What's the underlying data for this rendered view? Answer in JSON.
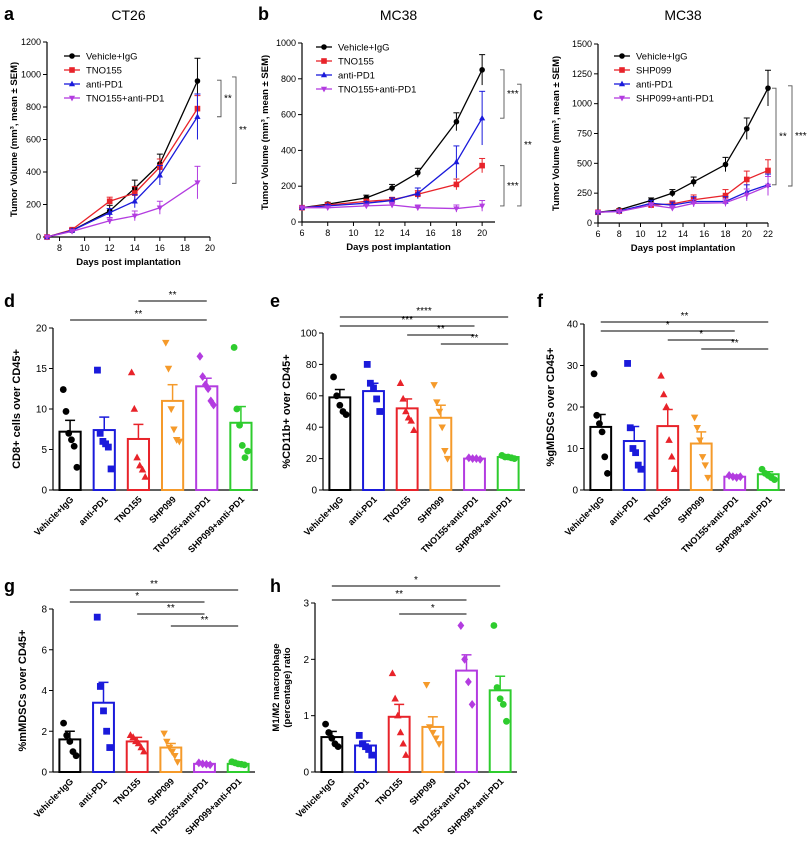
{
  "colors": {
    "black": "#000000",
    "red": "#e8232a",
    "blue": "#1a1adb",
    "violet": "#b33ce0",
    "orange": "#f59a2a",
    "green": "#2ecc2e"
  },
  "chart_data": [
    {
      "panel": "a",
      "type": "line",
      "title": "CT26",
      "xlabel": "Days post implantation",
      "ylabel": "Tumor Volume (mm³, mean ± SEM)",
      "xlim": [
        7,
        20
      ],
      "ylim": [
        0,
        1200
      ],
      "xticks": [
        8,
        10,
        12,
        14,
        16,
        18,
        20
      ],
      "yticks": [
        0,
        200,
        400,
        600,
        800,
        1000,
        1200
      ],
      "legend_position": "top-left",
      "series": [
        {
          "name": "Vehicle+IgG",
          "color": "black",
          "marker": "circle",
          "x": [
            7,
            9,
            12,
            14,
            16,
            19
          ],
          "y": [
            0,
            40,
            160,
            300,
            450,
            960
          ],
          "err": [
            0,
            8,
            35,
            50,
            60,
            140
          ]
        },
        {
          "name": "TNO155",
          "color": "red",
          "marker": "square",
          "x": [
            7,
            9,
            12,
            14,
            16,
            19
          ],
          "y": [
            0,
            45,
            220,
            270,
            430,
            790
          ],
          "err": [
            0,
            8,
            25,
            40,
            50,
            80
          ]
        },
        {
          "name": "anti-PD1",
          "color": "blue",
          "marker": "triangle",
          "x": [
            7,
            9,
            12,
            14,
            16,
            19
          ],
          "y": [
            0,
            40,
            150,
            220,
            380,
            740
          ],
          "err": [
            0,
            8,
            25,
            40,
            60,
            140
          ]
        },
        {
          "name": "TNO155+anti-PD1",
          "color": "violet",
          "marker": "triangle-down",
          "x": [
            7,
            9,
            12,
            14,
            16,
            19
          ],
          "y": [
            0,
            35,
            100,
            130,
            180,
            335
          ],
          "err": [
            0,
            8,
            20,
            30,
            40,
            100
          ]
        }
      ],
      "annotations": [
        "**",
        "**"
      ]
    },
    {
      "panel": "b",
      "type": "line",
      "title": "MC38",
      "xlabel": "Days post implantation",
      "ylabel": "Tumor Volume (mm³, mean ± SEM)",
      "xlim": [
        6,
        21
      ],
      "ylim": [
        0,
        1000
      ],
      "xticks": [
        6,
        8,
        10,
        12,
        14,
        16,
        18,
        20
      ],
      "yticks": [
        0,
        200,
        400,
        600,
        800,
        1000
      ],
      "legend_position": "top-left",
      "series": [
        {
          "name": "Vehicle+IgG",
          "color": "black",
          "marker": "circle",
          "x": [
            6,
            8,
            11,
            13,
            15,
            18,
            20
          ],
          "y": [
            80,
            100,
            135,
            190,
            275,
            560,
            850
          ],
          "err": [
            5,
            10,
            15,
            20,
            25,
            50,
            85
          ]
        },
        {
          "name": "TNO155",
          "color": "red",
          "marker": "square",
          "x": [
            6,
            8,
            11,
            13,
            15,
            18,
            20
          ],
          "y": [
            80,
            95,
            115,
            125,
            155,
            210,
            315
          ],
          "err": [
            5,
            8,
            10,
            12,
            20,
            30,
            40
          ]
        },
        {
          "name": "anti-PD1",
          "color": "blue",
          "marker": "triangle",
          "x": [
            6,
            8,
            11,
            13,
            15,
            18,
            20
          ],
          "y": [
            80,
            90,
            105,
            120,
            160,
            335,
            580
          ],
          "err": [
            5,
            8,
            10,
            15,
            30,
            90,
            150
          ]
        },
        {
          "name": "TNO155+anti-PD1",
          "color": "violet",
          "marker": "triangle-down",
          "x": [
            6,
            8,
            11,
            13,
            15,
            18,
            20
          ],
          "y": [
            80,
            80,
            90,
            95,
            80,
            75,
            90
          ],
          "err": [
            5,
            8,
            10,
            15,
            15,
            20,
            30
          ]
        }
      ],
      "annotations": [
        "***",
        "***",
        "**"
      ]
    },
    {
      "panel": "c",
      "type": "line",
      "title": "MC38",
      "xlabel": "Days post implantation",
      "ylabel": "Tumor Volume (mm³, mean ± SEM)",
      "xlim": [
        6,
        22
      ],
      "ylim": [
        0,
        1500
      ],
      "xticks": [
        6,
        8,
        10,
        12,
        14,
        16,
        18,
        20,
        22
      ],
      "yticks": [
        0,
        250,
        500,
        750,
        1000,
        1250,
        1500
      ],
      "legend_position": "top-left",
      "series": [
        {
          "name": "Vehicle+IgG",
          "color": "black",
          "marker": "circle",
          "x": [
            6,
            8,
            11,
            13,
            15,
            18,
            20,
            22
          ],
          "y": [
            90,
            110,
            190,
            250,
            345,
            490,
            790,
            1130
          ],
          "err": [
            5,
            10,
            20,
            30,
            40,
            60,
            90,
            150
          ]
        },
        {
          "name": "SHP099",
          "color": "red",
          "marker": "square",
          "x": [
            6,
            8,
            11,
            13,
            15,
            18,
            20,
            22
          ],
          "y": [
            90,
            100,
            150,
            160,
            195,
            230,
            365,
            440
          ],
          "err": [
            5,
            10,
            20,
            25,
            40,
            50,
            70,
            90
          ]
        },
        {
          "name": "anti-PD1",
          "color": "blue",
          "marker": "triangle",
          "x": [
            6,
            8,
            11,
            13,
            15,
            18,
            20,
            22
          ],
          "y": [
            90,
            100,
            165,
            150,
            180,
            180,
            260,
            320
          ],
          "err": [
            5,
            10,
            25,
            25,
            40,
            40,
            60,
            90
          ]
        },
        {
          "name": "SHP099+anti-PD1",
          "color": "violet",
          "marker": "triangle-down",
          "x": [
            6,
            8,
            11,
            13,
            15,
            18,
            20,
            22
          ],
          "y": [
            90,
            95,
            150,
            125,
            165,
            170,
            235,
            310
          ],
          "err": [
            5,
            10,
            20,
            20,
            30,
            30,
            50,
            80
          ]
        }
      ],
      "annotations": [
        "**",
        "***"
      ]
    },
    {
      "panel": "d",
      "type": "bar",
      "ylabel": "CD8+ cells over CD45+",
      "ylim": [
        0,
        20
      ],
      "yticks": [
        0,
        5,
        10,
        15,
        20
      ],
      "categories": [
        "Vehicle+IgG",
        "anti-PD1",
        "TNO155",
        "SHP099",
        "TNO155+anti-PD1",
        "SHP099+anti-PD1"
      ],
      "colors": [
        "black",
        "blue",
        "red",
        "orange",
        "violet",
        "green"
      ],
      "markers": [
        "circle",
        "square",
        "triangle",
        "triangle-down",
        "diamond",
        "circle"
      ],
      "values": [
        7.2,
        7.4,
        6.3,
        11.0,
        12.8,
        8.3
      ],
      "err": [
        1.4,
        1.6,
        1.8,
        2.0,
        1.0,
        2.0
      ],
      "points": [
        [
          12.4,
          9.7,
          7.0,
          6.2,
          5.4,
          2.8
        ],
        [
          14.8,
          7.0,
          6.0,
          5.7,
          5.3,
          2.6
        ],
        [
          14.5,
          10.0,
          4.0,
          3.0,
          2.5,
          1.6
        ],
        [
          18.2,
          15.0,
          10.0,
          7.5,
          6.2,
          6.0
        ],
        [
          16.5,
          14.0,
          13.0,
          12.5,
          11.0,
          10.5
        ],
        [
          17.6,
          10.0,
          8.0,
          5.5,
          4.0,
          4.8
        ]
      ],
      "significance": [
        {
          "from": 2,
          "to": 4,
          "label": "**"
        },
        {
          "from": 0,
          "to": 4,
          "label": "**"
        }
      ]
    },
    {
      "panel": "e",
      "type": "bar",
      "ylabel": "%CD11b+ over CD45+",
      "ylim": [
        0,
        100
      ],
      "yticks": [
        0,
        20,
        40,
        60,
        80,
        100
      ],
      "categories": [
        "Vehicle+IgG",
        "anti-PD1",
        "TNO155",
        "SHP099",
        "TNO155+anti-PD1",
        "SHP099+anti-PD1"
      ],
      "colors": [
        "black",
        "blue",
        "red",
        "orange",
        "violet",
        "green"
      ],
      "markers": [
        "circle",
        "square",
        "triangle",
        "triangle-down",
        "diamond",
        "circle"
      ],
      "values": [
        59,
        63,
        52,
        46,
        20,
        21
      ],
      "err": [
        5,
        5,
        6,
        8,
        0.5,
        1
      ],
      "points": [
        [
          72,
          60,
          54,
          50,
          48
        ],
        [
          80,
          68,
          65,
          58,
          50
        ],
        [
          68,
          58,
          50,
          46,
          44,
          38
        ],
        [
          67,
          56,
          50,
          40,
          25,
          20
        ],
        [
          20.5,
          20,
          20,
          19.5
        ],
        [
          22,
          21,
          21,
          20.5,
          20
        ]
      ],
      "significance": [
        {
          "from": 0,
          "to": 5,
          "label": "****"
        },
        {
          "from": 0,
          "to": 4,
          "label": "***"
        },
        {
          "from": 2,
          "to": 4,
          "label": "**"
        },
        {
          "from": 3,
          "to": 5,
          "label": "**"
        }
      ]
    },
    {
      "panel": "f",
      "type": "bar",
      "ylabel": "%gMDSCs over CD45+",
      "ylim": [
        0,
        40
      ],
      "yticks": [
        0,
        10,
        20,
        30,
        40
      ],
      "categories": [
        "Vehicle+IgG",
        "anti-PD1",
        "TNO155",
        "SHP099",
        "TNO155+anti-PD1",
        "SHP099+anti-PD1"
      ],
      "colors": [
        "black",
        "blue",
        "red",
        "orange",
        "violet",
        "green"
      ],
      "markers": [
        "circle",
        "square",
        "triangle",
        "triangle-down",
        "diamond",
        "circle"
      ],
      "values": [
        15.2,
        11.8,
        15.4,
        11.2,
        3.2,
        3.8
      ],
      "err": [
        3,
        3.5,
        4,
        2.8,
        0.4,
        0.6
      ],
      "points": [
        [
          28,
          18,
          16,
          14,
          8,
          4
        ],
        [
          30.5,
          15,
          10,
          9,
          6,
          5
        ],
        [
          27.5,
          23,
          20,
          12,
          8,
          5
        ],
        [
          17.5,
          15,
          12,
          8,
          6,
          3
        ],
        [
          3.5,
          3.2,
          3.0,
          3.2
        ],
        [
          5,
          4,
          3.5,
          3.0,
          2.5
        ]
      ],
      "significance": [
        {
          "from": 0,
          "to": 5,
          "label": "**"
        },
        {
          "from": 0,
          "to": 4,
          "label": "*"
        },
        {
          "from": 2,
          "to": 4,
          "label": "*"
        },
        {
          "from": 3,
          "to": 5,
          "label": "**"
        }
      ]
    },
    {
      "panel": "g",
      "type": "bar",
      "ylabel": "%mMDSCs over CD45+",
      "ylim": [
        0,
        8
      ],
      "yticks": [
        0,
        2,
        4,
        6,
        8
      ],
      "categories": [
        "Vehicle+IgG",
        "anti-PD1",
        "TNO155",
        "SHP099",
        "TNO155+anti-PD1",
        "SHP099+anti-PD1"
      ],
      "colors": [
        "black",
        "blue",
        "red",
        "orange",
        "violet",
        "green"
      ],
      "markers": [
        "circle",
        "square",
        "triangle",
        "triangle-down",
        "diamond",
        "circle"
      ],
      "values": [
        1.6,
        3.4,
        1.5,
        1.2,
        0.4,
        0.4
      ],
      "err": [
        0.4,
        1.0,
        0.2,
        0.2,
        0.05,
        0.05
      ],
      "points": [
        [
          2.4,
          1.8,
          1.5,
          1.0,
          0.8
        ],
        [
          7.6,
          4.2,
          3.0,
          2.0,
          1.2
        ],
        [
          1.8,
          1.7,
          1.5,
          1.4,
          1.2,
          1.0
        ],
        [
          1.9,
          1.5,
          1.2,
          1.0,
          0.8,
          0.5
        ],
        [
          0.45,
          0.4,
          0.38,
          0.35
        ],
        [
          0.5,
          0.45,
          0.4,
          0.38,
          0.35
        ]
      ],
      "significance": [
        {
          "from": 0,
          "to": 5,
          "label": "**"
        },
        {
          "from": 0,
          "to": 4,
          "label": "*"
        },
        {
          "from": 2,
          "to": 4,
          "label": "**"
        },
        {
          "from": 3,
          "to": 5,
          "label": "**"
        }
      ]
    },
    {
      "panel": "h",
      "type": "bar",
      "ylabel": "M1/M2 macrophage (percentage) ratio",
      "ylim": [
        0,
        3
      ],
      "yticks": [
        0,
        1,
        2,
        3
      ],
      "categories": [
        "Vehicle+IgG",
        "anti-PD1",
        "TNO155",
        "SHP099",
        "TNO155+anti-PD1",
        "SHP099+anti-PD1"
      ],
      "colors": [
        "black",
        "blue",
        "red",
        "orange",
        "violet",
        "green"
      ],
      "markers": [
        "circle",
        "square",
        "triangle",
        "triangle-down",
        "diamond",
        "circle"
      ],
      "values": [
        0.62,
        0.47,
        0.98,
        0.8,
        1.8,
        1.45
      ],
      "err": [
        0.1,
        0.08,
        0.22,
        0.18,
        0.28,
        0.25
      ],
      "points": [
        [
          0.85,
          0.7,
          0.6,
          0.5,
          0.45
        ],
        [
          0.65,
          0.5,
          0.45,
          0.4,
          0.3
        ],
        [
          1.75,
          1.3,
          1.0,
          0.7,
          0.5,
          0.3
        ],
        [
          1.55,
          0.8,
          0.7,
          0.6,
          0.5
        ],
        [
          2.6,
          2.0,
          1.6,
          1.2
        ],
        [
          2.6,
          1.5,
          1.3,
          1.2,
          0.9
        ]
      ],
      "significance": [
        {
          "from": 0,
          "to": 5,
          "label": "*"
        },
        {
          "from": 0,
          "to": 4,
          "label": "**"
        },
        {
          "from": 2,
          "to": 4,
          "label": "*"
        }
      ]
    }
  ]
}
